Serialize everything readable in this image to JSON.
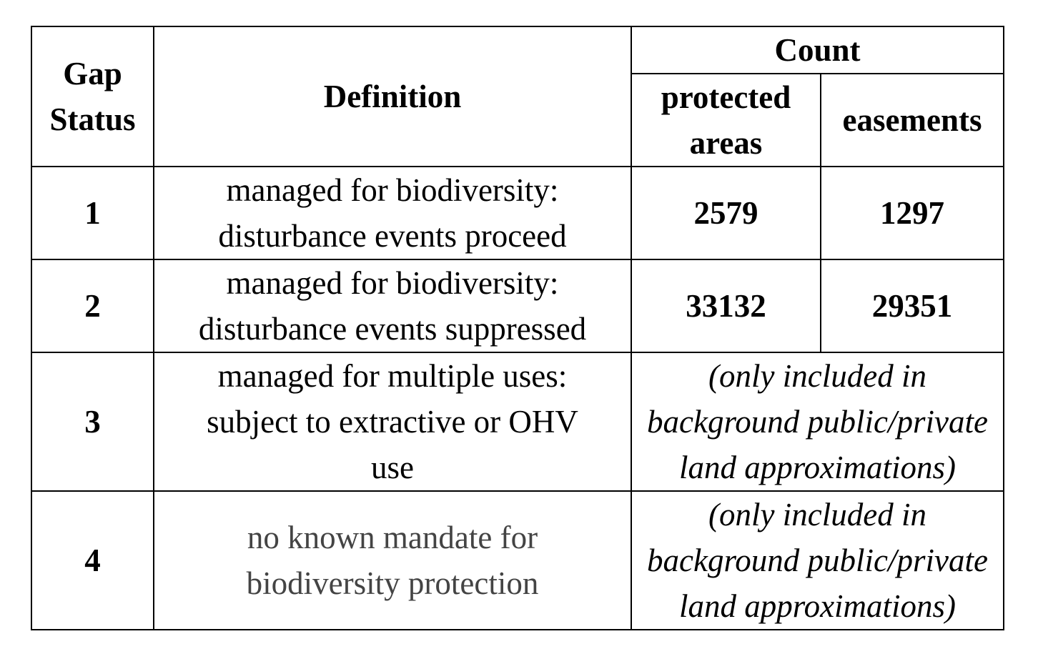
{
  "table": {
    "headers": {
      "gap_status_line1": "Gap",
      "gap_status_line2": "Status",
      "definition": "Definition",
      "count": "Count",
      "protected_line1": "protected",
      "protected_line2": "areas",
      "easements": "easements"
    },
    "rows": [
      {
        "status": "1",
        "definition_line1": "managed for biodiversity:",
        "definition_line2": "disturbance events proceed",
        "protected_areas": "2579",
        "easements": "1297"
      },
      {
        "status": "2",
        "definition_line1": "managed for biodiversity:",
        "definition_line2": "disturbance events suppressed",
        "protected_areas": "33132",
        "easements": "29351"
      },
      {
        "status": "3",
        "definition_line1": "managed for multiple uses:",
        "definition_line2": "subject to extractive or OHV",
        "definition_line3": "use",
        "note_line1": "(only included in",
        "note_line2": "background public/private",
        "note_line3": "land approximations)"
      },
      {
        "status": "4",
        "definition_line1": "no known mandate for",
        "definition_line2": "biodiversity protection",
        "note_line1": "(only included in",
        "note_line2": "background public/private",
        "note_line3": "land approximations)"
      }
    ]
  }
}
